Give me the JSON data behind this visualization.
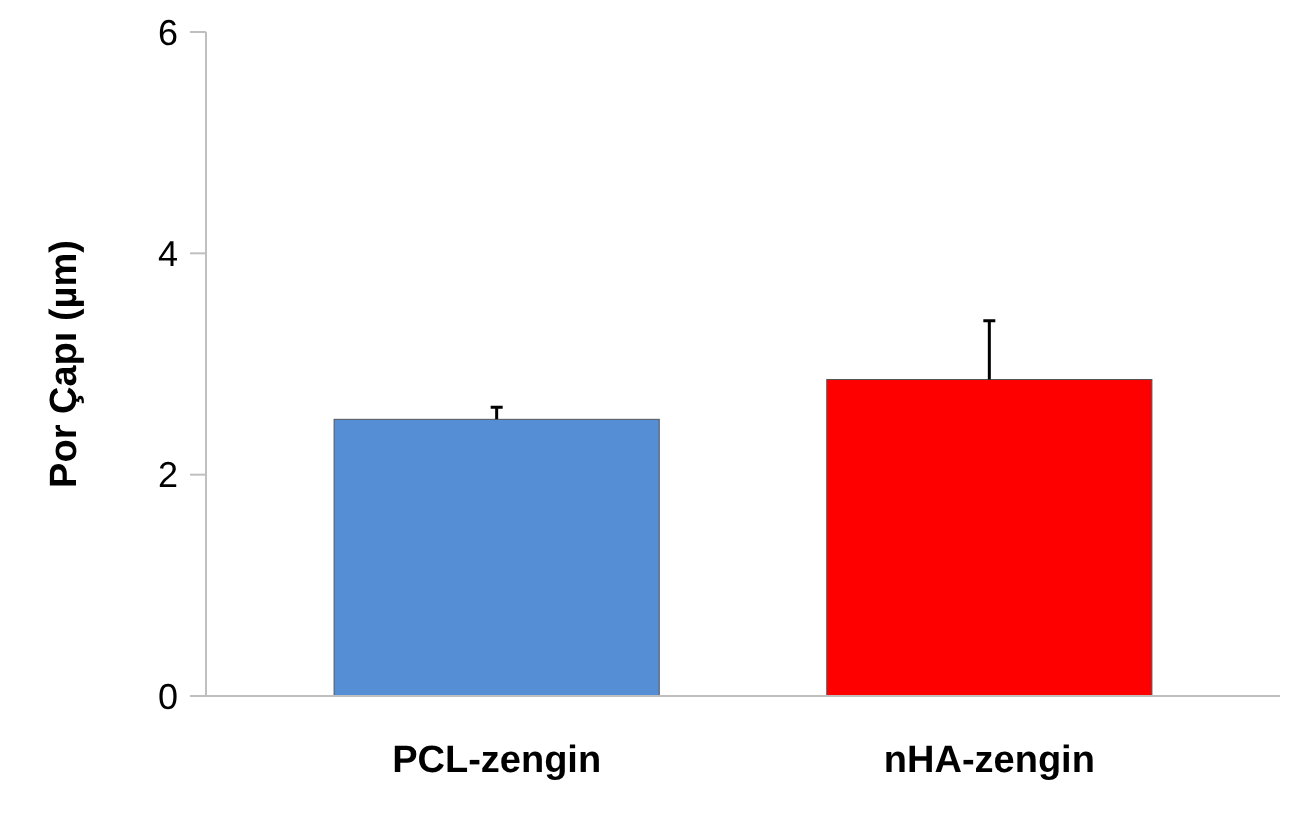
{
  "chart_data": {
    "type": "bar",
    "ylabel": "Por Çapı (µm)",
    "categories": [
      "PCL-zengin",
      "nHA-zengin"
    ],
    "values": [
      2.5,
      2.86
    ],
    "colors": [
      "#558ed5",
      "#ff0000"
    ],
    "errors": [
      [
        2.5,
        2.61
      ],
      [
        2.86,
        3.39
      ]
    ],
    "ylim": [
      0,
      6
    ],
    "yticks": [
      0,
      2,
      4,
      6
    ],
    "grid": false
  }
}
